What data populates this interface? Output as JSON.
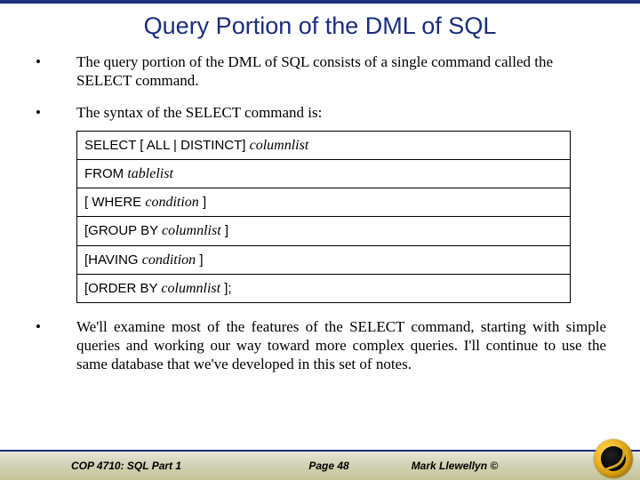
{
  "colors": {
    "accent": "#1a2e7a",
    "footer_gradient_top": "#e8e8d8",
    "footer_gradient_bottom": "#c4c498",
    "logo_gold": "#e6a817",
    "box_border": "#000000",
    "background": "#ffffff"
  },
  "title": "Query Portion of the DML of SQL",
  "bullets": [
    {
      "text": "The query portion of the DML of SQL consists of a single command called the SELECT command."
    },
    {
      "text": "The syntax of the SELECT command is:"
    },
    {
      "text": "We'll examine most of the features of the SELECT command, starting with simple queries and working our way toward more complex queries.  I'll continue to use the same database that we've developed in this set of notes."
    }
  ],
  "syntax": {
    "rows": [
      {
        "kw": "SELECT [ ALL | DISTINCT] ",
        "it": "columnlist"
      },
      {
        "kw": "FROM ",
        "it": "tablelist"
      },
      {
        "kw": "[ WHERE ",
        "it": "condition",
        "tail": " ]"
      },
      {
        "kw": "[GROUP BY  ",
        "it": "columnlist",
        "tail": " ]"
      },
      {
        "kw": "[HAVING ",
        "it": "condition",
        "tail": " ]"
      },
      {
        "kw": "[ORDER BY ",
        "it": "columnlist",
        "tail": " ];"
      }
    ]
  },
  "footer": {
    "left": "COP 4710: SQL Part 1",
    "center": "Page 48",
    "right": "Mark Llewellyn ©"
  }
}
